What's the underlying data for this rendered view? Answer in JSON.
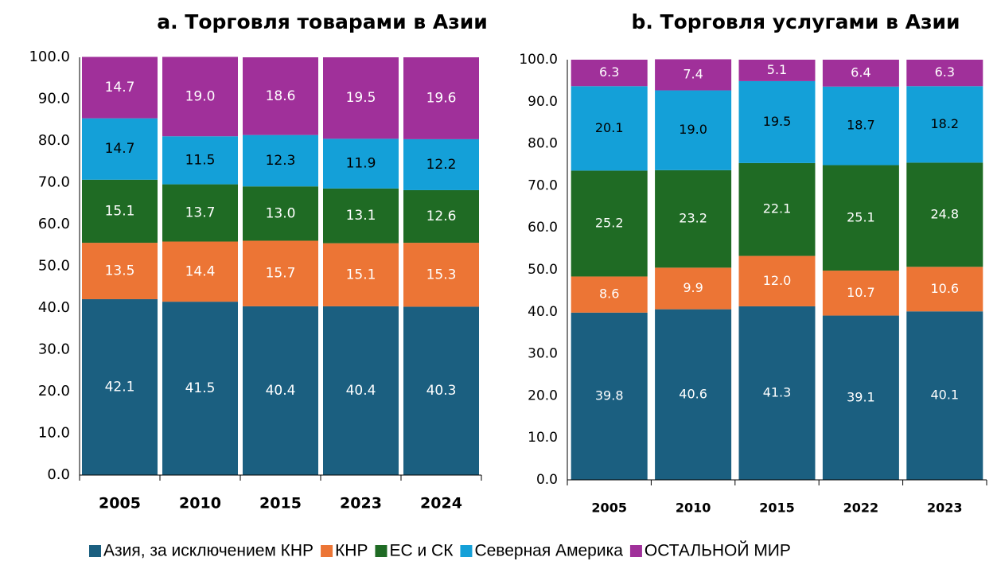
{
  "chart_data": [
    {
      "type": "stacked_bar",
      "title": "a. Торговля товарами в Азии",
      "categories": [
        "2005",
        "2010",
        "2015",
        "2023",
        "2024"
      ],
      "ylim": [
        0,
        100
      ],
      "yticks": [
        {
          "value": 0,
          "label": "0.0"
        },
        {
          "value": 10,
          "label": "10.0"
        },
        {
          "value": 20,
          "label": "20.0"
        },
        {
          "value": 30,
          "label": "30.0"
        },
        {
          "value": 40,
          "label": "40.0"
        },
        {
          "value": 50,
          "label": "50.0"
        },
        {
          "value": 60,
          "label": "60.0"
        },
        {
          "value": 70,
          "label": "70.0"
        },
        {
          "value": 80,
          "label": "80.0"
        },
        {
          "value": 90,
          "label": "90.0"
        },
        {
          "value": 100,
          "label": "100.0"
        }
      ],
      "series": [
        {
          "name": "Азия, за исключением КНР",
          "color": "#1b5f80",
          "values": [
            42.1,
            41.5,
            40.4,
            40.4,
            40.3
          ],
          "value_labels": [
            "42.1",
            "41.5",
            "40.4",
            "40.4",
            "40.3"
          ]
        },
        {
          "name": "КНР",
          "color": "#ec7535",
          "values": [
            13.5,
            14.4,
            15.7,
            15.1,
            15.3
          ],
          "value_labels": [
            "13.5",
            "14.4",
            "15.7",
            "15.1",
            "15.3"
          ]
        },
        {
          "name": "ЕС и СК",
          "color": "#1f6b24",
          "values": [
            15.1,
            13.7,
            13.0,
            13.1,
            12.6
          ],
          "value_labels": [
            "15.1",
            "13.7",
            "13.0",
            "13.1",
            "12.6"
          ]
        },
        {
          "name": "Северная Америка",
          "color": "#14a0d8",
          "values": [
            14.7,
            11.5,
            12.3,
            11.9,
            12.2
          ],
          "value_labels": [
            "14.7",
            "11.5",
            "12.3",
            "11.9",
            "12.2"
          ]
        },
        {
          "name": "ОСТАЛЬНОЙ МИР",
          "color": "#a0309a",
          "values": [
            14.7,
            19.0,
            18.6,
            19.5,
            19.6
          ],
          "value_labels": [
            "14.7",
            "19.0",
            "18.6",
            "19.5",
            "19.6"
          ]
        }
      ]
    },
    {
      "type": "stacked_bar",
      "title": "b. Торговля услугами в Азии",
      "categories": [
        "2005",
        "2010",
        "2015",
        "2022",
        "2023"
      ],
      "ylim": [
        0,
        100
      ],
      "yticks": [
        {
          "value": 0,
          "label": "0.0"
        },
        {
          "value": 10,
          "label": "10.0"
        },
        {
          "value": 20,
          "label": "20.0"
        },
        {
          "value": 30,
          "label": "30.0"
        },
        {
          "value": 40,
          "label": "40.0"
        },
        {
          "value": 50,
          "label": "50.0"
        },
        {
          "value": 60,
          "label": "60.0"
        },
        {
          "value": 70,
          "label": "70.0"
        },
        {
          "value": 80,
          "label": "80.0"
        },
        {
          "value": 90,
          "label": "90.0"
        },
        {
          "value": 100,
          "label": "100.0"
        }
      ],
      "series": [
        {
          "values": [
            39.8,
            40.6,
            41.3,
            39.1,
            40.1
          ],
          "value_labels": [
            "39.8",
            "40.6",
            "41.3",
            "39.1",
            "40.1"
          ]
        },
        {
          "values": [
            8.6,
            9.9,
            12.0,
            10.7,
            10.6
          ],
          "value_labels": [
            "8.6",
            "9.9",
            "12.0",
            "10.7",
            "10.6"
          ]
        },
        {
          "values": [
            25.2,
            23.2,
            22.1,
            25.1,
            24.8
          ],
          "value_labels": [
            "25.2",
            "23.2",
            "22.1",
            "25.1",
            "24.8"
          ]
        },
        {
          "values": [
            20.1,
            19.0,
            19.5,
            18.7,
            18.2
          ],
          "value_labels": [
            "20.1",
            "19.0",
            "19.5",
            "18.7",
            "18.2"
          ]
        },
        {
          "values": [
            6.3,
            7.4,
            5.1,
            6.4,
            6.3
          ],
          "value_labels": [
            "6.3",
            "7.4",
            "5.1",
            "6.4",
            "6.3"
          ]
        }
      ]
    }
  ]
}
